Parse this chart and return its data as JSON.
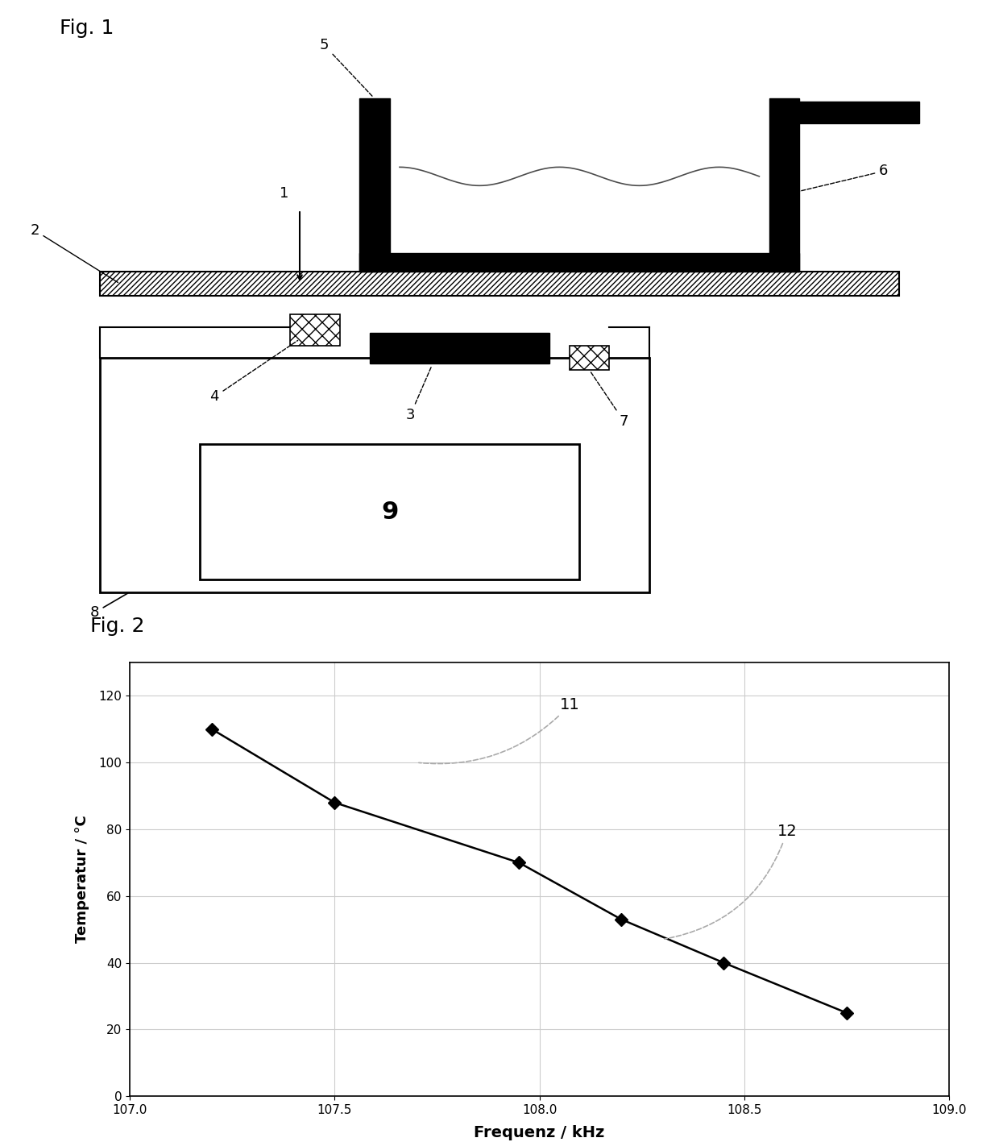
{
  "fig1_title": "Fig. 1",
  "fig2_title": "Fig. 2",
  "graph_x": [
    107.2,
    107.5,
    107.95,
    108.2,
    108.45,
    108.75
  ],
  "graph_y": [
    110,
    88,
    70,
    53,
    40,
    25
  ],
  "xlabel": "Frequenz / kHz",
  "ylabel": "Temperatur / °C",
  "xlim": [
    107,
    109
  ],
  "ylim": [
    0,
    130
  ],
  "xticks": [
    107,
    107.5,
    108,
    108.5,
    109
  ],
  "yticks": [
    0,
    20,
    40,
    60,
    80,
    100,
    120
  ],
  "bg_color": "#ffffff",
  "line_color": "#000000",
  "marker_color": "#000000",
  "grid_color": "#cccccc"
}
